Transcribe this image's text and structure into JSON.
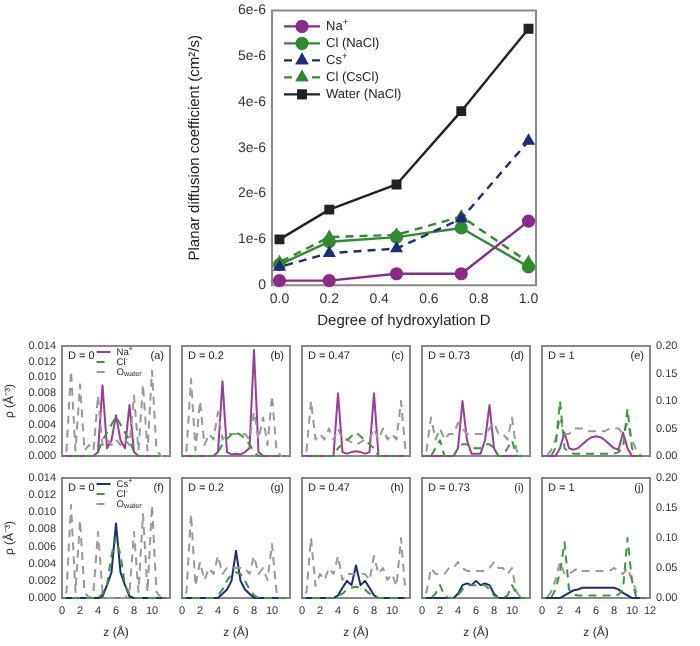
{
  "chart_data": [
    {
      "type": "line",
      "xlabel": "Degree of hydroxylation D",
      "ylabel": "Planar diffusion coefficient (cm²/s)",
      "x": [
        0,
        0.2,
        0.47,
        0.73,
        1.0
      ],
      "xlim": [
        -0.03,
        1.03
      ],
      "xticks": [
        {
          "value": 0,
          "label": "0.0"
        },
        {
          "value": 0.2,
          "label": "0.2"
        },
        {
          "value": 0.4,
          "label": "0.4"
        },
        {
          "value": 0.6,
          "label": "0.6"
        },
        {
          "value": 0.8,
          "label": "0.8"
        },
        {
          "value": 1,
          "label": "1.0"
        }
      ],
      "ylim": [
        0,
        6e-06
      ],
      "yticks": [
        0,
        {
          "value": 1e-06,
          "label": "1e-6"
        },
        {
          "value": 2e-06,
          "label": "2e-6"
        },
        {
          "value": 3e-06,
          "label": "3e-6"
        },
        {
          "value": 4e-06,
          "label": "4e-6"
        },
        {
          "value": 5e-06,
          "label": "5e-6"
        },
        {
          "value": 6e-06,
          "label": "6e-6"
        }
      ],
      "legend": "top left",
      "series": [
        {
          "name": "Na$^{+}$",
          "color": "#8b2a8b",
          "marker": "circle",
          "line_style": "solid",
          "values": [
            1e-07,
            1e-07,
            2.5e-07,
            2.5e-07,
            1.4e-06
          ]
        },
        {
          "name": "Cl (NaCl)",
          "color": "#2e8b2e",
          "marker": "circle",
          "line_style": "solid",
          "values": [
            4.5e-07,
            9.5e-07,
            1.05e-06,
            1.25e-06,
            4e-07
          ]
        },
        {
          "name": "Cs$^{+}$",
          "color": "#1f2a7a",
          "marker": "triangle",
          "line_style": "dashed",
          "values": [
            4e-07,
            7e-07,
            8e-07,
            1.45e-06,
            3.15e-06
          ]
        },
        {
          "name": "Cl (CsCl)",
          "color": "#2e8b2e",
          "marker": "triangle",
          "line_style": "dashed",
          "values": [
            5e-07,
            1.05e-06,
            1.1e-06,
            1.5e-06,
            5e-07
          ]
        },
        {
          "name": "Water (NaCl)",
          "color": "#222222",
          "marker": "square",
          "line_style": "solid",
          "values": [
            1e-06,
            1.65e-06,
            2.2e-06,
            3.8e-06,
            5.6e-06
          ]
        }
      ]
    },
    {
      "type": "line",
      "title": "D = 0",
      "annotations": [
        "(a)"
      ],
      "ylabel": "ρ (Å⁻³)",
      "tick_labels": "y",
      "legend": "top",
      "x": [
        0,
        0.5,
        1,
        1.5,
        2,
        2.5,
        3,
        3.5,
        4,
        4.5,
        5,
        5.5,
        6,
        6.5,
        7,
        7.5,
        8,
        8.5,
        9,
        9.5,
        10,
        10.5,
        11,
        11.5
      ],
      "xlim": [
        0,
        12
      ],
      "ylim": [
        0,
        0.014
      ],
      "yticks": [
        {
          "value": 0,
          "label": "0.000"
        },
        {
          "value": 0.002,
          "label": "0.002"
        },
        {
          "value": 0.004,
          "label": "0.004"
        },
        {
          "value": 0.006,
          "label": "0.006"
        },
        {
          "value": 0.008,
          "label": "0.008"
        },
        {
          "value": 0.01,
          "label": "0.010"
        },
        {
          "value": 0.012,
          "label": "0.012"
        },
        {
          "value": 0.014,
          "label": "0.014"
        }
      ],
      "y2lim": [
        0,
        0.2
      ],
      "series": [
        {
          "name": "Na$^{+}$",
          "color": "#9b3c9b",
          "line_style": "solid",
          "values": [
            0,
            0,
            0,
            0,
            0,
            0,
            0,
            0,
            0.0005,
            0.009,
            0.001,
            0.002,
            0.0052,
            0.002,
            0.001,
            0.0065,
            0.0005,
            0,
            0,
            0,
            0,
            0,
            0,
            0
          ]
        },
        {
          "name": "Cl$^{-}$",
          "color": "#3a9a3a",
          "line_style": "dashed",
          "values": [
            0,
            0,
            0,
            0,
            0,
            0,
            0,
            0,
            0.0005,
            0.002,
            0.003,
            0.004,
            0.005,
            0.004,
            0.003,
            0.002,
            0.0005,
            0,
            0,
            0,
            0,
            0,
            0,
            0
          ]
        },
        {
          "name": "O$_{water}$",
          "color": "#999999",
          "line_style": "dashed",
          "axis": "y2",
          "values": [
            0,
            0.01,
            0.155,
            0.01,
            0.13,
            0.01,
            0.02,
            0.01,
            0.11,
            0.02,
            0.03,
            0.02,
            0.03,
            0.02,
            0.03,
            0.02,
            0.11,
            0.01,
            0.13,
            0.01,
            0.155,
            0.01,
            0,
            0
          ]
        }
      ]
    },
    {
      "type": "line",
      "title": "D = 0.2",
      "annotations": [
        "(b)"
      ],
      "tick_labels": false,
      "x": [
        0,
        0.5,
        1,
        1.5,
        2,
        2.5,
        3,
        3.5,
        4,
        4.5,
        5,
        5.5,
        6,
        6.5,
        7,
        7.5,
        8,
        8.5,
        9,
        9.5,
        10,
        10.5,
        11,
        11.5
      ],
      "xlim": [
        0,
        12
      ],
      "ylim": [
        0,
        0.014
      ],
      "y2lim": [
        0,
        0.2
      ],
      "series": [
        {
          "color": "#9b3c9b",
          "line_style": "solid",
          "values": [
            0,
            0,
            0,
            0,
            0,
            0,
            0,
            0,
            0.0005,
            0.0095,
            0.0005,
            0.0002,
            0.0003,
            0.0002,
            0.0005,
            0.001,
            0.0135,
            0.0005,
            0,
            0,
            0,
            0,
            0,
            0
          ]
        },
        {
          "color": "#3a9a3a",
          "line_style": "dashed",
          "values": [
            0,
            0,
            0,
            0,
            0,
            0,
            0,
            0,
            0.0005,
            0.0015,
            0.0022,
            0.0027,
            0.003,
            0.0027,
            0.0022,
            0.0015,
            0.0005,
            0,
            0,
            0,
            0,
            0,
            0,
            0
          ]
        },
        {
          "color": "#999999",
          "line_style": "dashed",
          "axis": "y2",
          "values": [
            0,
            0.01,
            0.14,
            0.01,
            0.1,
            0.02,
            0.04,
            0.03,
            0.08,
            0.03,
            0.04,
            0.04,
            0.04,
            0.04,
            0.04,
            0.03,
            0.08,
            0.03,
            0.07,
            0.02,
            0.11,
            0.01,
            0,
            0
          ]
        }
      ]
    },
    {
      "type": "line",
      "title": "D = 0.47",
      "annotations": [
        "(c)"
      ],
      "tick_labels": false,
      "x": [
        0,
        0.5,
        1,
        1.5,
        2,
        2.5,
        3,
        3.5,
        4,
        4.5,
        5,
        5.5,
        6,
        6.5,
        7,
        7.5,
        8,
        8.5,
        9,
        9.5,
        10,
        10.5,
        11,
        11.5
      ],
      "xlim": [
        0,
        12
      ],
      "ylim": [
        0,
        0.014
      ],
      "y2lim": [
        0,
        0.2
      ],
      "series": [
        {
          "color": "#9b3c9b",
          "line_style": "solid",
          "values": [
            0,
            0,
            0,
            0,
            0,
            0,
            0,
            0,
            0.008,
            0.0005,
            0.0003,
            0.0005,
            0.0006,
            0.0005,
            0.0003,
            0.0005,
            0.008,
            0,
            0,
            0,
            0,
            0,
            0,
            0
          ]
        },
        {
          "color": "#3a9a3a",
          "line_style": "dashed",
          "values": [
            0,
            0,
            0,
            0,
            0,
            0,
            0,
            0,
            0.001,
            0.0015,
            0.002,
            0.0025,
            0.003,
            0.0025,
            0.002,
            0.0015,
            0.001,
            0,
            0,
            0,
            0,
            0,
            0,
            0
          ]
        },
        {
          "color": "#999999",
          "line_style": "dashed",
          "axis": "y2",
          "values": [
            0,
            0.01,
            0.1,
            0.03,
            0.04,
            0.03,
            0.05,
            0.03,
            0.05,
            0.03,
            0.03,
            0.025,
            0.02,
            0.025,
            0.03,
            0.03,
            0.05,
            0.03,
            0.05,
            0.03,
            0.04,
            0.03,
            0.1,
            0.01
          ]
        }
      ]
    },
    {
      "type": "line",
      "title": "D = 0.73",
      "annotations": [
        "(d)"
      ],
      "tick_labels": false,
      "x": [
        0,
        0.5,
        1,
        1.5,
        2,
        2.5,
        3,
        3.5,
        4,
        4.5,
        5,
        5.5,
        6,
        6.5,
        7,
        7.5,
        8,
        8.5,
        9,
        9.5,
        10,
        10.5,
        11,
        11.5
      ],
      "xlim": [
        0,
        12
      ],
      "ylim": [
        0,
        0.014
      ],
      "y2lim": [
        0,
        0.2
      ],
      "series": [
        {
          "color": "#9b3c9b",
          "line_style": "solid",
          "values": [
            0,
            0,
            0,
            0,
            0,
            0,
            0,
            0,
            0.001,
            0.007,
            0.002,
            0.0003,
            0.0003,
            0.0003,
            0.002,
            0.0065,
            0.001,
            0,
            0,
            0,
            0,
            0,
            0,
            0
          ]
        },
        {
          "color": "#3a9a3a",
          "line_style": "dashed",
          "values": [
            0,
            0,
            0,
            0.001,
            0.002,
            0,
            0,
            0,
            0.001,
            0.0015,
            0.0015,
            0.001,
            0.001,
            0.001,
            0.0015,
            0.0015,
            0.001,
            0,
            0,
            0.001,
            0.002,
            0,
            0,
            0
          ]
        },
        {
          "color": "#999999",
          "line_style": "dashed",
          "axis": "y2",
          "values": [
            0,
            0.01,
            0.07,
            0.03,
            0.05,
            0.03,
            0.04,
            0.04,
            0.06,
            0.05,
            0.04,
            0.04,
            0.04,
            0.04,
            0.04,
            0.05,
            0.06,
            0.04,
            0.04,
            0.03,
            0.07,
            0.01,
            0,
            0
          ]
        }
      ]
    },
    {
      "type": "line",
      "title": "D = 1",
      "annotations": [
        "(e)"
      ],
      "tick_labels": "y2",
      "x": [
        0,
        0.5,
        1,
        1.5,
        2,
        2.5,
        3,
        3.5,
        4,
        4.5,
        5,
        5.5,
        6,
        6.5,
        7,
        7.5,
        8,
        8.5,
        9,
        9.5,
        10,
        10.5,
        11,
        11.5
      ],
      "xlim": [
        0,
        12
      ],
      "ylim": [
        0,
        0.014
      ],
      "y2lim": [
        0,
        0.2
      ],
      "y2ticks": [
        {
          "value": 0,
          "label": "0.00"
        },
        {
          "value": 0.05,
          "label": "0.05"
        },
        {
          "value": 0.1,
          "label": "0.10"
        },
        {
          "value": 0.15,
          "label": "0.15"
        },
        {
          "value": 0.2,
          "label": "0.20"
        }
      ],
      "series": [
        {
          "color": "#9b3c9b",
          "line_style": "solid",
          "values": [
            0,
            0,
            0,
            0,
            0.001,
            0.003,
            0.001,
            0.0008,
            0.001,
            0.0015,
            0.002,
            0.0024,
            0.0025,
            0.0024,
            0.002,
            0.0015,
            0.001,
            0.0008,
            0.003,
            0.001,
            0,
            0,
            0,
            0
          ]
        },
        {
          "color": "#3a9a3a",
          "line_style": "dashed",
          "values": [
            0,
            0,
            0,
            0.001,
            0.007,
            0.001,
            0.0005,
            0.0003,
            0.0003,
            0.0003,
            0.0003,
            0.0003,
            0.0003,
            0.0003,
            0.0003,
            0.0003,
            0.0003,
            0.0005,
            0.001,
            0.006,
            0.001,
            0,
            0,
            0
          ]
        },
        {
          "color": "#999999",
          "line_style": "dashed",
          "axis": "y2",
          "values": [
            0,
            0,
            0.01,
            0.03,
            0.07,
            0.04,
            0.04,
            0.05,
            0.05,
            0.05,
            0.045,
            0.045,
            0.045,
            0.045,
            0.045,
            0.05,
            0.05,
            0.05,
            0.04,
            0.06,
            0.03,
            0.01,
            0,
            0
          ]
        }
      ]
    },
    {
      "type": "line",
      "title": "D = 0",
      "annotations": [
        "(f)"
      ],
      "ylabel": "ρ (Å⁻³)",
      "xlabel": "z (Å)",
      "tick_labels": "xy",
      "legend": "top",
      "x": [
        0,
        0.5,
        1,
        1.5,
        2,
        2.5,
        3,
        3.5,
        4,
        4.5,
        5,
        5.5,
        6,
        6.5,
        7,
        7.5,
        8,
        8.5,
        9,
        9.5,
        10,
        10.5,
        11,
        11.5
      ],
      "xlim": [
        0,
        12
      ],
      "xticks": [
        0,
        2,
        4,
        6,
        8,
        10
      ],
      "ylim": [
        0,
        0.014
      ],
      "yticks": [
        {
          "value": 0,
          "label": "0.000"
        },
        {
          "value": 0.002,
          "label": "0.002"
        },
        {
          "value": 0.004,
          "label": "0.004"
        },
        {
          "value": 0.006,
          "label": "0.006"
        },
        {
          "value": 0.008,
          "label": "0.008"
        },
        {
          "value": 0.01,
          "label": "0.010"
        },
        {
          "value": 0.012,
          "label": "0.012"
        },
        {
          "value": 0.014,
          "label": "0.014"
        }
      ],
      "y2lim": [
        0,
        0.2
      ],
      "series": [
        {
          "name": "Cs$^{+}$",
          "color": "#1f2a7a",
          "line_style": "solid",
          "values": [
            0,
            0,
            0,
            0,
            0,
            0,
            0,
            0,
            0,
            0.0002,
            0.0015,
            0.003,
            0.0087,
            0.003,
            0.0015,
            0.0002,
            0,
            0,
            0,
            0,
            0,
            0,
            0,
            0
          ]
        },
        {
          "name": "Cl$^{-}$",
          "color": "#3a9a3a",
          "line_style": "dashed",
          "values": [
            0,
            0,
            0,
            0,
            0,
            0,
            0,
            0,
            0,
            0.0005,
            0.0015,
            0.005,
            0.007,
            0.005,
            0.0015,
            0.0005,
            0,
            0,
            0,
            0,
            0,
            0,
            0,
            0
          ]
        },
        {
          "name": "O$_{water}$",
          "color": "#999999",
          "line_style": "dashed",
          "axis": "y2",
          "values": [
            0,
            0.01,
            0.155,
            0.01,
            0.13,
            0.01,
            0,
            0.01,
            0.11,
            0.01,
            0,
            0,
            0,
            0,
            0,
            0.01,
            0.11,
            0.01,
            0.14,
            0.01,
            0.155,
            0.01,
            0,
            0
          ]
        }
      ]
    },
    {
      "type": "line",
      "title": "D = 0.2",
      "annotations": [
        "(g)"
      ],
      "xlabel": "z (Å)",
      "tick_labels": "x",
      "x": [
        0,
        0.5,
        1,
        1.5,
        2,
        2.5,
        3,
        3.5,
        4,
        4.5,
        5,
        5.5,
        6,
        6.5,
        7,
        7.5,
        8,
        8.5,
        9,
        9.5,
        10,
        10.5,
        11,
        11.5
      ],
      "xlim": [
        0,
        12
      ],
      "xticks": [
        0,
        2,
        4,
        6,
        8,
        10
      ],
      "ylim": [
        0,
        0.014
      ],
      "y2lim": [
        0,
        0.2
      ],
      "series": [
        {
          "color": "#1f2a7a",
          "line_style": "solid",
          "values": [
            0,
            0,
            0,
            0,
            0,
            0,
            0,
            0,
            0,
            0.0005,
            0.001,
            0.002,
            0.0055,
            0.002,
            0.001,
            0.0005,
            0,
            0,
            0,
            0,
            0,
            0,
            0,
            0
          ]
        },
        {
          "color": "#3a9a3a",
          "line_style": "dashed",
          "values": [
            0,
            0,
            0,
            0,
            0,
            0,
            0,
            0,
            0.0003,
            0.001,
            0.002,
            0.0028,
            0.003,
            0.0028,
            0.002,
            0.001,
            0.0003,
            0,
            0,
            0,
            0,
            0,
            0,
            0
          ]
        },
        {
          "color": "#999999",
          "line_style": "dashed",
          "axis": "y2",
          "values": [
            0,
            0.01,
            0.14,
            0.02,
            0.06,
            0.03,
            0.05,
            0.04,
            0.07,
            0.04,
            0.05,
            0.05,
            0.05,
            0.05,
            0.05,
            0.04,
            0.07,
            0.04,
            0.05,
            0.03,
            0.09,
            0.01,
            0,
            0
          ]
        }
      ]
    },
    {
      "type": "line",
      "title": "D = 0.47",
      "annotations": [
        "(h)"
      ],
      "xlabel": "z (Å)",
      "tick_labels": "x",
      "x": [
        0,
        0.5,
        1,
        1.5,
        2,
        2.5,
        3,
        3.5,
        4,
        4.5,
        5,
        5.5,
        6,
        6.5,
        7,
        7.5,
        8,
        8.5,
        9,
        9.5,
        10,
        10.5,
        11,
        11.5
      ],
      "xlim": [
        0,
        12
      ],
      "xticks": [
        0,
        2,
        4,
        6,
        8,
        10
      ],
      "ylim": [
        0,
        0.014
      ],
      "y2lim": [
        0,
        0.2
      ],
      "series": [
        {
          "color": "#1f2a7a",
          "line_style": "solid",
          "values": [
            0,
            0,
            0,
            0,
            0,
            0,
            0,
            0,
            0.0003,
            0.0012,
            0.002,
            0.0015,
            0.0038,
            0.0015,
            0.002,
            0.0012,
            0.0003,
            0,
            0,
            0,
            0,
            0,
            0,
            0
          ]
        },
        {
          "color": "#3a9a3a",
          "line_style": "dashed",
          "values": [
            0,
            0,
            0,
            0,
            0,
            0,
            0,
            0,
            0.0002,
            0.0005,
            0.001,
            0.0012,
            0.0013,
            0.0012,
            0.001,
            0.0005,
            0.0002,
            0,
            0,
            0,
            0,
            0,
            0,
            0
          ]
        },
        {
          "color": "#999999",
          "line_style": "dashed",
          "axis": "y2",
          "values": [
            0,
            0.01,
            0.1,
            0.02,
            0.04,
            0.03,
            0.05,
            0.04,
            0.07,
            0.03,
            0.04,
            0.04,
            0.04,
            0.04,
            0.04,
            0.03,
            0.07,
            0.04,
            0.05,
            0.03,
            0.04,
            0.02,
            0.1,
            0.01
          ]
        }
      ]
    },
    {
      "type": "line",
      "title": "D = 0.73",
      "annotations": [
        "(i)"
      ],
      "xlabel": "z (Å)",
      "tick_labels": "x",
      "x": [
        0,
        0.5,
        1,
        1.5,
        2,
        2.5,
        3,
        3.5,
        4,
        4.5,
        5,
        5.5,
        6,
        6.5,
        7,
        7.5,
        8,
        8.5,
        9,
        9.5,
        10,
        10.5,
        11,
        11.5
      ],
      "xlim": [
        0,
        12
      ],
      "xticks": [
        0,
        2,
        4,
        6,
        8,
        10
      ],
      "ylim": [
        0,
        0.014
      ],
      "y2lim": [
        0,
        0.2
      ],
      "series": [
        {
          "color": "#1f2a7a",
          "line_style": "solid",
          "values": [
            0,
            0,
            0,
            0,
            0,
            0,
            0,
            0,
            0.0005,
            0.0015,
            0.0017,
            0.0015,
            0.002,
            0.0015,
            0.0017,
            0.0015,
            0.0005,
            0,
            0,
            0,
            0,
            0,
            0,
            0
          ]
        },
        {
          "color": "#3a9a3a",
          "line_style": "dashed",
          "values": [
            0,
            0,
            0,
            0.0005,
            0.0015,
            0.0003,
            0,
            0,
            0.0003,
            0.001,
            0.0015,
            0.0015,
            0.0015,
            0.0015,
            0.0015,
            0.001,
            0.0003,
            0,
            0,
            0.0003,
            0.0015,
            0.0005,
            0,
            0
          ]
        },
        {
          "color": "#999999",
          "line_style": "dashed",
          "axis": "y2",
          "values": [
            0,
            0.01,
            0.05,
            0.04,
            0.04,
            0.04,
            0.05,
            0.05,
            0.06,
            0.05,
            0.045,
            0.045,
            0.045,
            0.045,
            0.045,
            0.05,
            0.06,
            0.05,
            0.05,
            0.04,
            0.05,
            0.01,
            0,
            0
          ]
        }
      ]
    },
    {
      "type": "line",
      "title": "D = 1",
      "annotations": [
        "(j)"
      ],
      "xlabel": "z (Å)",
      "tick_labels": "xy2",
      "x": [
        0,
        0.5,
        1,
        1.5,
        2,
        2.5,
        3,
        3.5,
        4,
        4.5,
        5,
        5.5,
        6,
        6.5,
        7,
        7.5,
        8,
        8.5,
        9,
        9.5,
        10,
        10.5,
        11,
        11.5
      ],
      "xlim": [
        0,
        12
      ],
      "xticks": [
        0,
        2,
        4,
        6,
        8,
        10,
        12
      ],
      "ylim": [
        0,
        0.014
      ],
      "y2lim": [
        0,
        0.2
      ],
      "y2ticks": [
        {
          "value": 0,
          "label": "0.00"
        },
        {
          "value": 0.05,
          "label": "0.05"
        },
        {
          "value": 0.1,
          "label": "0.10"
        },
        {
          "value": 0.15,
          "label": "0.15"
        },
        {
          "value": 0.2,
          "label": "0.20"
        }
      ],
      "series": [
        {
          "color": "#1f2a7a",
          "line_style": "solid",
          "values": [
            0,
            0,
            0,
            0,
            0,
            0.0003,
            0.0006,
            0.0009,
            0.001,
            0.0012,
            0.0012,
            0.0012,
            0.0012,
            0.0012,
            0.0012,
            0.0012,
            0.0012,
            0.001,
            0.0006,
            0.0003,
            0,
            0,
            0,
            0
          ]
        },
        {
          "color": "#3a9a3a",
          "line_style": "dashed",
          "values": [
            0,
            0,
            0,
            0.001,
            0.003,
            0.0065,
            0.001,
            0.0004,
            0.0003,
            0.0003,
            0.0003,
            0.0003,
            0.0003,
            0.0003,
            0.0003,
            0.0003,
            0.0003,
            0.0004,
            0.001,
            0.007,
            0.002,
            0,
            0,
            0
          ]
        },
        {
          "color": "#999999",
          "line_style": "dashed",
          "axis": "y2",
          "values": [
            0,
            0,
            0.01,
            0.03,
            0.06,
            0.04,
            0.04,
            0.045,
            0.05,
            0.045,
            0.045,
            0.045,
            0.045,
            0.045,
            0.045,
            0.045,
            0.05,
            0.045,
            0.04,
            0.05,
            0.03,
            0.01,
            0,
            0
          ]
        }
      ]
    }
  ]
}
